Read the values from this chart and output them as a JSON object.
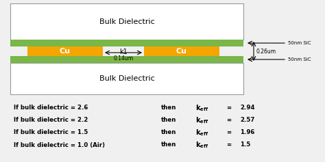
{
  "bg_color": "#f0f0f0",
  "colors": {
    "white": "#ffffff",
    "orange": "#f5a500",
    "green": "#7ab648",
    "gray_border": "#999999",
    "black": "#000000"
  },
  "labels": {
    "bulk_dielectric": "Bulk Dielectric",
    "cu": "Cu",
    "k1": "k1",
    "width": "0.14um",
    "height": "0.26um",
    "sic_top": "50nm SiC",
    "sic_bot": "50nm SiC"
  },
  "table_rows": [
    [
      "2.6",
      "2.94"
    ],
    [
      "2.2",
      "2.57"
    ],
    [
      "1.5",
      "1.96"
    ],
    [
      "1.0 (Air)",
      "1.5"
    ]
  ]
}
